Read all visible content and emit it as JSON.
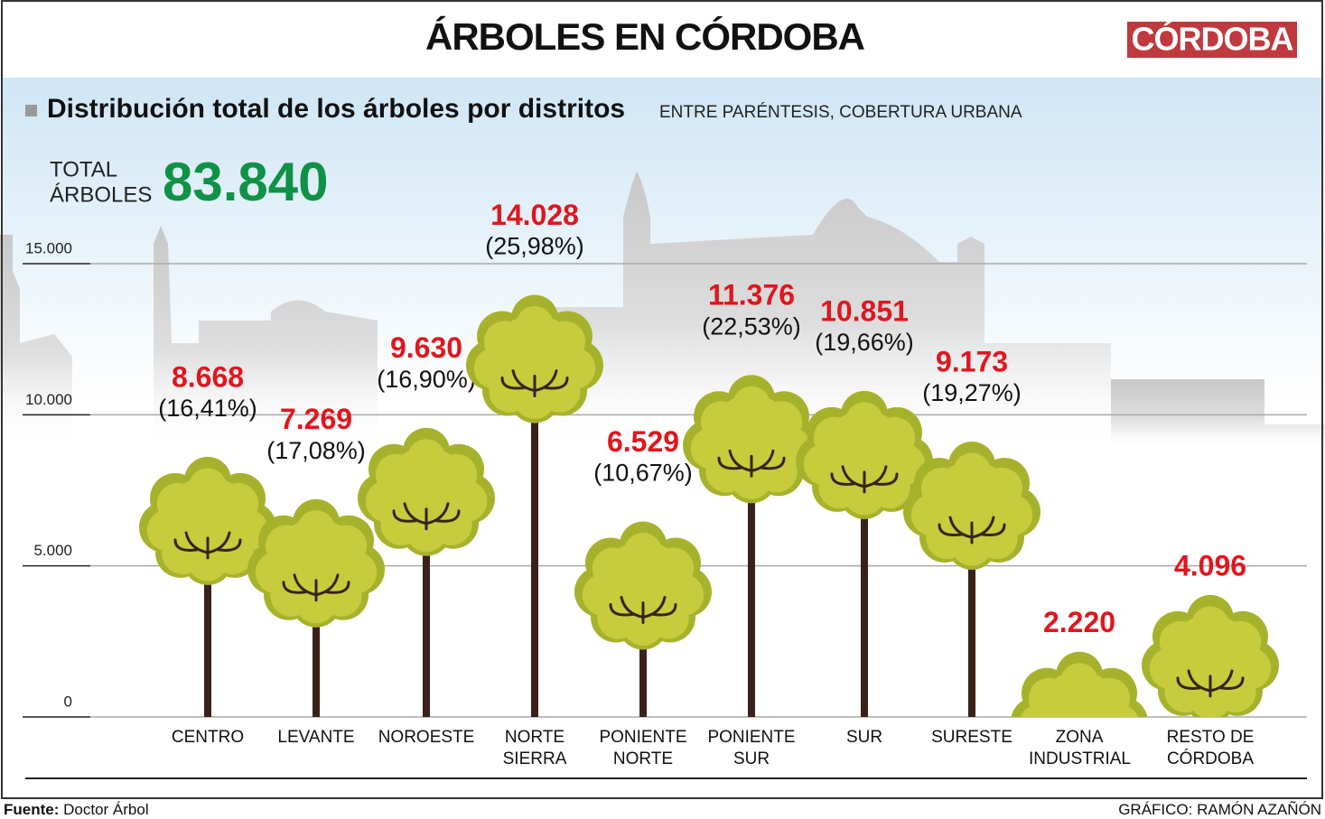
{
  "header": {
    "title": "ÁRBOLES EN CÓRDOBA",
    "logo": "CÓRDOBA"
  },
  "chart_data": {
    "type": "tree",
    "title": "Distribución total de los árboles por distritos",
    "subtitle": "ENTRE PARÉNTESIS, COBERTURA URBANA",
    "total": {
      "label_lines": [
        "TOTAL",
        "ÁRBOLES"
      ],
      "value": 83840,
      "value_label": "83.840"
    },
    "categories": [
      "CENTRO",
      "LEVANTE",
      "NOROESTE",
      "NORTE SIERRA",
      "PONIENTE NORTE",
      "PONIENTE SUR",
      "SUR",
      "SURESTE",
      "ZONA INDUSTRIAL",
      "RESTO DE CÓRDOBA"
    ],
    "series": [
      {
        "color": "#e0161e",
        "values": [
          8668,
          7269,
          9630,
          14028,
          6529,
          11376,
          10851,
          9173,
          2220,
          4096
        ],
        "value_labels": [
          "8.668",
          "7.269",
          "9.630",
          "14.028",
          "6.529",
          "11.376",
          "10.851",
          "9.173",
          "2.220",
          "4.096"
        ]
      },
      {
        "color": "#111111",
        "values": [
          16.41,
          17.08,
          16.9,
          25.98,
          10.67,
          22.53,
          19.66,
          19.27,
          null,
          null
        ],
        "value_labels": [
          "(16,41%)",
          "(17,08%)",
          "(16,90%)",
          "(25,98%)",
          "(10,67%)",
          "(22,53%)",
          "(19,66%)",
          "(19,27%)",
          null,
          null
        ]
      }
    ],
    "ylim": [
      0,
      15000
    ],
    "yticks": [
      0,
      {
        "value": 5000,
        "label": "5.000"
      },
      {
        "value": 10000,
        "label": "10.000"
      },
      {
        "value": 15000,
        "label": "15.000"
      }
    ],
    "grid": true
  },
  "footer": {
    "source_label": "Fuente:",
    "source": "Doctor Árbol",
    "credit": "GRÁFICO: RAMÓN AZAÑÓN"
  }
}
